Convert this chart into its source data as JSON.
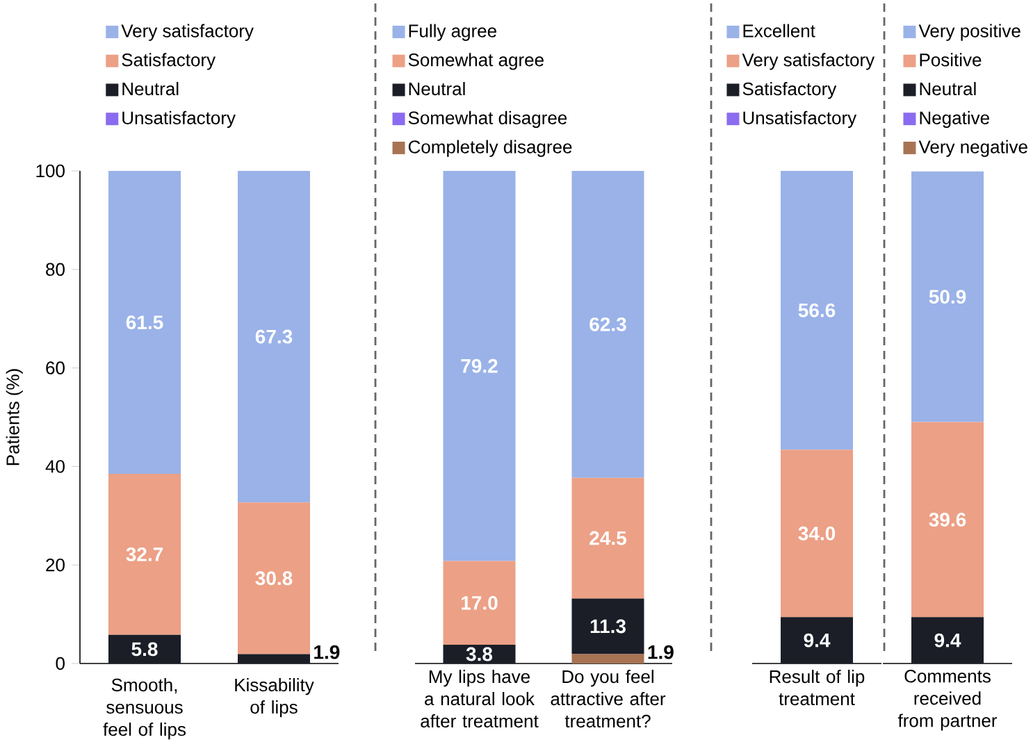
{
  "chart_data": [
    {
      "type": "bar",
      "stacked": true,
      "categories": [
        "Smooth, sensuous feel of lips",
        "Kissability of lips"
      ],
      "ylabel": "Patients (%)",
      "ylim": [
        0,
        100
      ],
      "yticks": [
        0,
        20,
        40,
        60,
        80,
        100
      ],
      "legend": "top",
      "series": [
        {
          "name": "Unsatisfactory",
          "color": "#8b6cf0",
          "values": [
            0,
            0
          ],
          "value_labels": [
            null,
            null
          ]
        },
        {
          "name": "Neutral",
          "color": "#1b1e27",
          "values": [
            5.8,
            1.9
          ],
          "value_labels": [
            "5.8",
            "1.9"
          ]
        },
        {
          "name": "Satisfactory",
          "color": "#eca086",
          "values": [
            32.7,
            30.8
          ],
          "value_labels": [
            "32.7",
            "30.8"
          ]
        },
        {
          "name": "Very satisfactory",
          "color": "#9ab2e8",
          "values": [
            61.5,
            67.3
          ],
          "value_labels": [
            "61.5",
            "67.3"
          ]
        }
      ]
    },
    {
      "type": "bar",
      "stacked": true,
      "categories": [
        "My lips have a natural look after treatment",
        "Do you feel attractive after treatment?"
      ],
      "ylim": [
        0,
        100
      ],
      "tick_labels": "x",
      "legend": "top",
      "series": [
        {
          "name": "Completely disagree",
          "color": "#a87352",
          "values": [
            0,
            1.9
          ],
          "value_labels": [
            null,
            "1.9"
          ]
        },
        {
          "name": "Somewhat disagree",
          "color": "#8b6cf0",
          "values": [
            0,
            0
          ],
          "value_labels": [
            null,
            null
          ]
        },
        {
          "name": "Neutral",
          "color": "#1b1e27",
          "values": [
            3.8,
            11.3
          ],
          "value_labels": [
            "3.8",
            "11.3"
          ]
        },
        {
          "name": "Somewhat agree",
          "color": "#eca086",
          "values": [
            17.0,
            24.5
          ],
          "value_labels": [
            "17.0",
            "24.5"
          ]
        },
        {
          "name": "Fully agree",
          "color": "#9ab2e8",
          "values": [
            79.2,
            62.3
          ],
          "value_labels": [
            "79.2",
            "62.3"
          ]
        }
      ]
    },
    {
      "type": "bar",
      "stacked": true,
      "categories": [
        "Result of lip treatment"
      ],
      "ylim": [
        0,
        100
      ],
      "tick_labels": "x",
      "legend": "top",
      "series": [
        {
          "name": "Unsatisfactory",
          "color": "#8b6cf0",
          "values": [
            0
          ],
          "value_labels": [
            null
          ]
        },
        {
          "name": "Satisfactory",
          "color": "#1b1e27",
          "values": [
            9.4
          ],
          "value_labels": [
            "9.4"
          ]
        },
        {
          "name": "Very satisfactory",
          "color": "#eca086",
          "values": [
            34.0
          ],
          "value_labels": [
            "34.0"
          ]
        },
        {
          "name": "Excellent",
          "color": "#9ab2e8",
          "values": [
            56.6
          ],
          "value_labels": [
            "56.6"
          ]
        }
      ]
    },
    {
      "type": "bar",
      "stacked": true,
      "categories": [
        "Comments received from partner"
      ],
      "ylim": [
        0,
        100
      ],
      "tick_labels": "x",
      "legend": "top",
      "series": [
        {
          "name": "Very negative",
          "color": "#a87352",
          "values": [
            0
          ],
          "value_labels": [
            null
          ]
        },
        {
          "name": "Negative",
          "color": "#8b6cf0",
          "values": [
            0
          ],
          "value_labels": [
            null
          ]
        },
        {
          "name": "Neutral",
          "color": "#1b1e27",
          "values": [
            9.4
          ],
          "value_labels": [
            "9.4"
          ]
        },
        {
          "name": "Positive",
          "color": "#eca086",
          "values": [
            39.6
          ],
          "value_labels": [
            "39.6"
          ]
        },
        {
          "name": "Very positive",
          "color": "#9ab2e8",
          "values": [
            50.9
          ],
          "value_labels": [
            "50.9"
          ]
        }
      ]
    }
  ]
}
